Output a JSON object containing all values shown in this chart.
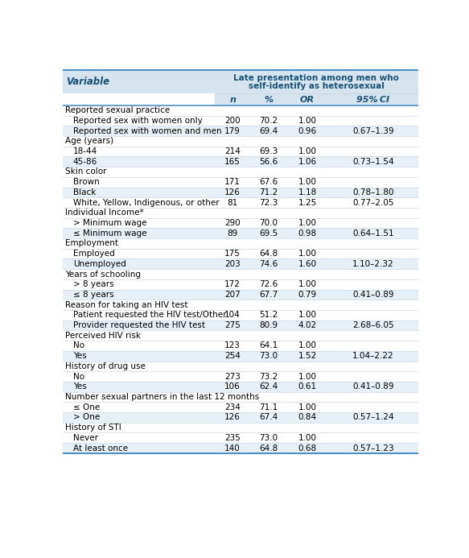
{
  "title_line1": "Late presentation among men who",
  "title_line2": "self-identify as heterosexual",
  "col_headers": [
    "n",
    "%",
    "OR",
    "95% CI"
  ],
  "rows": [
    {
      "label": "Reported sexual practice",
      "indent": 0,
      "is_category": true,
      "n": "",
      "pct": "",
      "or": "",
      "ci": ""
    },
    {
      "label": "Reported sex with women only",
      "indent": 1,
      "is_category": false,
      "n": "200",
      "pct": "70.2",
      "or": "1.00",
      "ci": ""
    },
    {
      "label": "Reported sex with women and men",
      "indent": 1,
      "is_category": false,
      "n": "179",
      "pct": "69.4",
      "or": "0.96",
      "ci": "0.67–1.39"
    },
    {
      "label": "Age (years)",
      "indent": 0,
      "is_category": true,
      "n": "",
      "pct": "",
      "or": "",
      "ci": ""
    },
    {
      "label": "18-44",
      "indent": 1,
      "is_category": false,
      "n": "214",
      "pct": "69.3",
      "or": "1.00",
      "ci": ""
    },
    {
      "label": "45-86",
      "indent": 1,
      "is_category": false,
      "n": "165",
      "pct": "56.6",
      "or": "1.06",
      "ci": "0.73–1.54"
    },
    {
      "label": "Skin color",
      "indent": 0,
      "is_category": true,
      "n": "",
      "pct": "",
      "or": "",
      "ci": ""
    },
    {
      "label": "Brown",
      "indent": 1,
      "is_category": false,
      "n": "171",
      "pct": "67.6",
      "or": "1.00",
      "ci": ""
    },
    {
      "label": "Black",
      "indent": 1,
      "is_category": false,
      "n": "126",
      "pct": "71.2",
      "or": "1.18",
      "ci": "0.78–1.80"
    },
    {
      "label": "White, Yellow, Indigenous, or other",
      "indent": 1,
      "is_category": false,
      "n": "81",
      "pct": "72.3",
      "or": "1.25",
      "ci": "0.77–2.05"
    },
    {
      "label": "Individual Income*",
      "indent": 0,
      "is_category": true,
      "n": "",
      "pct": "",
      "or": "",
      "ci": ""
    },
    {
      "label": "> Minimum wage",
      "indent": 1,
      "is_category": false,
      "n": "290",
      "pct": "70.0",
      "or": "1.00",
      "ci": ""
    },
    {
      "label": "≤ Minimum wage",
      "indent": 1,
      "is_category": false,
      "n": "89",
      "pct": "69.5",
      "or": "0.98",
      "ci": "0.64–1.51"
    },
    {
      "label": "Employment",
      "indent": 0,
      "is_category": true,
      "n": "",
      "pct": "",
      "or": "",
      "ci": ""
    },
    {
      "label": "Employed",
      "indent": 1,
      "is_category": false,
      "n": "175",
      "pct": "64.8",
      "or": "1.00",
      "ci": ""
    },
    {
      "label": "Unemployed",
      "indent": 1,
      "is_category": false,
      "n": "203",
      "pct": "74.6",
      "or": "1.60",
      "ci": "1.10–2.32"
    },
    {
      "label": "Years of schooling",
      "indent": 0,
      "is_category": true,
      "n": "",
      "pct": "",
      "or": "",
      "ci": ""
    },
    {
      "label": "> 8 years",
      "indent": 1,
      "is_category": false,
      "n": "172",
      "pct": "72.6",
      "or": "1.00",
      "ci": ""
    },
    {
      "label": "≤ 8 years",
      "indent": 1,
      "is_category": false,
      "n": "207",
      "pct": "67.7",
      "or": "0.79",
      "ci": "0.41–0.89"
    },
    {
      "label": "Reason for taking an HIV test",
      "indent": 0,
      "is_category": true,
      "n": "",
      "pct": "",
      "or": "",
      "ci": ""
    },
    {
      "label": "Patient requested the HIV test/Other",
      "indent": 1,
      "is_category": false,
      "n": "104",
      "pct": "51.2",
      "or": "1.00",
      "ci": ""
    },
    {
      "label": "Provider requested the HIV test",
      "indent": 1,
      "is_category": false,
      "n": "275",
      "pct": "80.9",
      "or": "4.02",
      "ci": "2.68–6.05"
    },
    {
      "label": "Perceived HIV risk",
      "indent": 0,
      "is_category": true,
      "n": "",
      "pct": "",
      "or": "",
      "ci": ""
    },
    {
      "label": "No",
      "indent": 1,
      "is_category": false,
      "n": "123",
      "pct": "64.1",
      "or": "1.00",
      "ci": ""
    },
    {
      "label": "Yes",
      "indent": 1,
      "is_category": false,
      "n": "254",
      "pct": "73.0",
      "or": "1.52",
      "ci": "1.04–2.22"
    },
    {
      "label": "History of drug use",
      "indent": 0,
      "is_category": true,
      "n": "",
      "pct": "",
      "or": "",
      "ci": ""
    },
    {
      "label": "No",
      "indent": 1,
      "is_category": false,
      "n": "273",
      "pct": "73.2",
      "or": "1.00",
      "ci": ""
    },
    {
      "label": "Yes",
      "indent": 1,
      "is_category": false,
      "n": "106",
      "pct": "62.4",
      "or": "0.61",
      "ci": "0.41–0.89"
    },
    {
      "label": "Number sexual partners in the last 12 months",
      "indent": 0,
      "is_category": true,
      "n": "",
      "pct": "",
      "or": "",
      "ci": ""
    },
    {
      "label": "≤ One",
      "indent": 1,
      "is_category": false,
      "n": "234",
      "pct": "71.1",
      "or": "1.00",
      "ci": ""
    },
    {
      "label": "> One",
      "indent": 1,
      "is_category": false,
      "n": "126",
      "pct": "67.4",
      "or": "0.84",
      "ci": "0.57–1.24"
    },
    {
      "label": "History of STI",
      "indent": 0,
      "is_category": true,
      "n": "",
      "pct": "",
      "or": "",
      "ci": ""
    },
    {
      "label": "Never",
      "indent": 1,
      "is_category": false,
      "n": "235",
      "pct": "73.0",
      "or": "1.00",
      "ci": ""
    },
    {
      "label": "At least once",
      "indent": 1,
      "is_category": false,
      "n": "140",
      "pct": "64.8",
      "or": "0.68",
      "ci": "0.57–1.23"
    }
  ],
  "header_bg": "#d6e4f0",
  "header_text_color": "#1a5276",
  "col_subheader_text_color": "#1a5276",
  "row_bg_white": "#ffffff",
  "row_bg_light": "#e8f0f7",
  "text_color": "#000000",
  "border_top_color": "#4a90c4",
  "border_bottom_color": "#4a90c4",
  "separator_color": "#c8d8e8",
  "variable_label_color": "#1a5276"
}
